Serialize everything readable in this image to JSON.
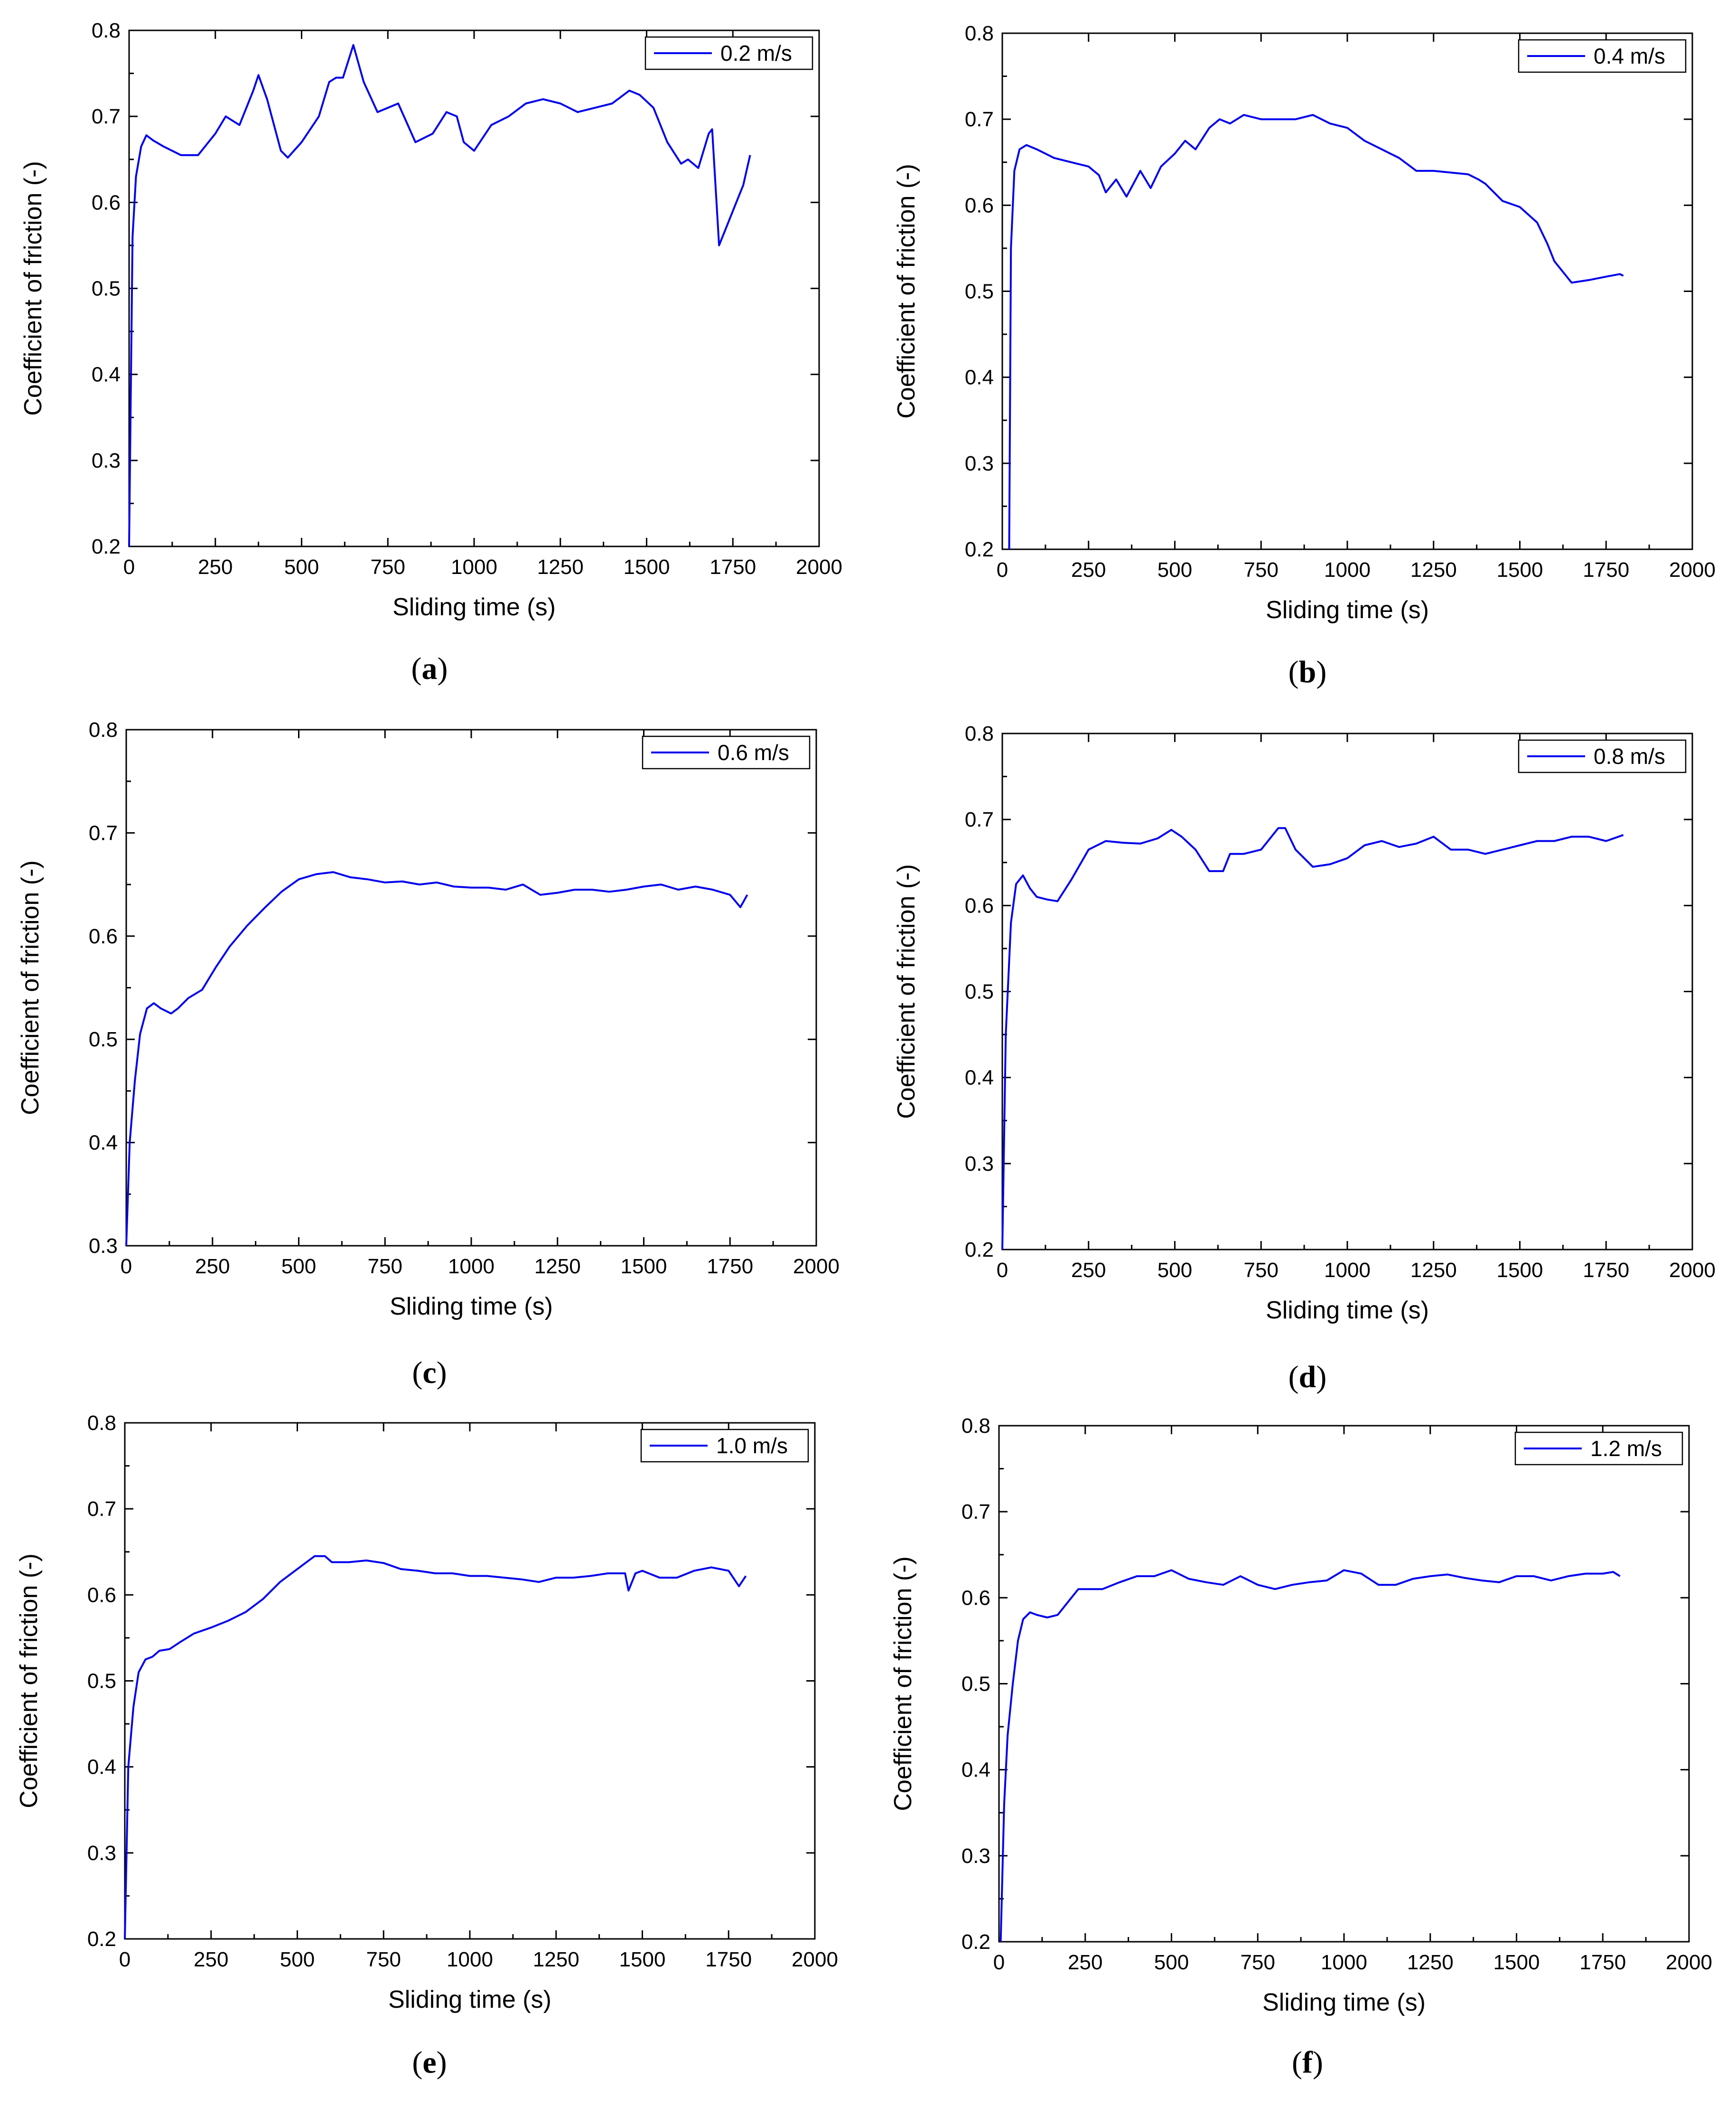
{
  "figure": {
    "series_color": "#0000ee",
    "axis_color": "#000000"
  },
  "chart_data": [
    {
      "id": "a",
      "type": "line",
      "panel_label": "a",
      "legend": "0.2 m/s",
      "xlabel": "Sliding time (s)",
      "ylabel": "Coefficient of friction (-)",
      "xlim": [
        0,
        2000
      ],
      "ylim": [
        0.2,
        0.8
      ],
      "xticks": [
        0,
        250,
        500,
        750,
        1000,
        1250,
        1500,
        1750,
        2000
      ],
      "yticks": [
        0.2,
        0.3,
        0.4,
        0.5,
        0.6,
        0.7,
        0.8
      ],
      "x": [
        0,
        10,
        20,
        35,
        50,
        70,
        100,
        150,
        200,
        250,
        280,
        320,
        360,
        375,
        400,
        440,
        460,
        500,
        550,
        580,
        600,
        620,
        650,
        680,
        720,
        780,
        830,
        880,
        920,
        950,
        970,
        1000,
        1050,
        1100,
        1150,
        1200,
        1250,
        1300,
        1350,
        1400,
        1450,
        1480,
        1520,
        1560,
        1600,
        1620,
        1650,
        1680,
        1690,
        1710,
        1730,
        1760,
        1780,
        1800
      ],
      "y": [
        0.2,
        0.56,
        0.63,
        0.665,
        0.678,
        0.672,
        0.665,
        0.655,
        0.655,
        0.68,
        0.7,
        0.69,
        0.73,
        0.748,
        0.72,
        0.66,
        0.652,
        0.67,
        0.7,
        0.74,
        0.745,
        0.745,
        0.783,
        0.74,
        0.705,
        0.715,
        0.67,
        0.68,
        0.705,
        0.7,
        0.67,
        0.66,
        0.69,
        0.7,
        0.715,
        0.72,
        0.715,
        0.705,
        0.71,
        0.715,
        0.73,
        0.725,
        0.71,
        0.67,
        0.645,
        0.65,
        0.64,
        0.68,
        0.685,
        0.55,
        0.57,
        0.6,
        0.62,
        0.655
      ]
    },
    {
      "id": "b",
      "type": "line",
      "panel_label": "b",
      "legend": "0.4 m/s",
      "xlabel": "Sliding time (s)",
      "ylabel": "Coefficient of friction (-)",
      "xlim": [
        0,
        2000
      ],
      "ylim": [
        0.2,
        0.8
      ],
      "xticks": [
        0,
        250,
        500,
        750,
        1000,
        1250,
        1500,
        1750,
        2000
      ],
      "yticks": [
        0.2,
        0.3,
        0.4,
        0.5,
        0.6,
        0.7,
        0.8
      ],
      "x": [
        20,
        25,
        35,
        50,
        70,
        100,
        150,
        200,
        250,
        280,
        300,
        330,
        360,
        380,
        400,
        430,
        460,
        500,
        530,
        560,
        600,
        630,
        660,
        700,
        750,
        800,
        850,
        900,
        950,
        1000,
        1050,
        1100,
        1150,
        1200,
        1250,
        1300,
        1350,
        1380,
        1400,
        1450,
        1500,
        1550,
        1580,
        1600,
        1630,
        1650,
        1700,
        1750,
        1790,
        1800
      ],
      "y": [
        0.2,
        0.55,
        0.64,
        0.665,
        0.67,
        0.665,
        0.655,
        0.65,
        0.645,
        0.635,
        0.615,
        0.63,
        0.61,
        0.625,
        0.64,
        0.62,
        0.645,
        0.66,
        0.675,
        0.665,
        0.69,
        0.7,
        0.695,
        0.705,
        0.7,
        0.7,
        0.7,
        0.705,
        0.695,
        0.69,
        0.675,
        0.665,
        0.655,
        0.64,
        0.64,
        0.638,
        0.636,
        0.63,
        0.625,
        0.605,
        0.598,
        0.58,
        0.555,
        0.535,
        0.52,
        0.51,
        0.513,
        0.517,
        0.52,
        0.518
      ]
    },
    {
      "id": "c",
      "type": "line",
      "panel_label": "c",
      "legend": "0.6 m/s",
      "xlabel": "Sliding time (s)",
      "ylabel": "Coefficient of friction (-)",
      "xlim": [
        0,
        2000
      ],
      "ylim": [
        0.3,
        0.8
      ],
      "xticks": [
        0,
        250,
        500,
        750,
        1000,
        1250,
        1500,
        1750,
        2000
      ],
      "yticks": [
        0.3,
        0.4,
        0.5,
        0.6,
        0.7,
        0.8
      ],
      "x": [
        0,
        10,
        25,
        40,
        60,
        80,
        100,
        130,
        150,
        180,
        220,
        260,
        300,
        350,
        400,
        450,
        500,
        550,
        600,
        650,
        700,
        750,
        800,
        850,
        900,
        950,
        1000,
        1050,
        1100,
        1150,
        1200,
        1250,
        1300,
        1350,
        1400,
        1450,
        1500,
        1550,
        1600,
        1650,
        1700,
        1750,
        1780,
        1800
      ],
      "y": [
        0.3,
        0.4,
        0.46,
        0.505,
        0.53,
        0.535,
        0.53,
        0.525,
        0.53,
        0.54,
        0.548,
        0.57,
        0.59,
        0.61,
        0.627,
        0.643,
        0.655,
        0.66,
        0.662,
        0.657,
        0.655,
        0.652,
        0.653,
        0.65,
        0.652,
        0.648,
        0.647,
        0.647,
        0.645,
        0.65,
        0.64,
        0.642,
        0.645,
        0.645,
        0.643,
        0.645,
        0.648,
        0.65,
        0.645,
        0.648,
        0.645,
        0.64,
        0.628,
        0.64
      ]
    },
    {
      "id": "d",
      "type": "line",
      "panel_label": "d",
      "legend": "0.8 m/s",
      "xlabel": "Sliding time (s)",
      "ylabel": "Coefficient of friction (-)",
      "xlim": [
        0,
        2000
      ],
      "ylim": [
        0.2,
        0.8
      ],
      "xticks": [
        0,
        250,
        500,
        750,
        1000,
        1250,
        1500,
        1750,
        2000
      ],
      "yticks": [
        0.2,
        0.3,
        0.4,
        0.5,
        0.6,
        0.7,
        0.8
      ],
      "x": [
        0,
        10,
        25,
        40,
        60,
        80,
        100,
        130,
        160,
        200,
        250,
        300,
        350,
        400,
        450,
        490,
        520,
        560,
        600,
        640,
        660,
        700,
        750,
        800,
        820,
        850,
        900,
        950,
        1000,
        1050,
        1100,
        1150,
        1200,
        1250,
        1300,
        1350,
        1400,
        1450,
        1500,
        1550,
        1600,
        1650,
        1700,
        1750,
        1800
      ],
      "y": [
        0.2,
        0.45,
        0.58,
        0.625,
        0.635,
        0.62,
        0.61,
        0.607,
        0.605,
        0.63,
        0.665,
        0.675,
        0.673,
        0.672,
        0.678,
        0.688,
        0.68,
        0.665,
        0.64,
        0.64,
        0.66,
        0.66,
        0.665,
        0.69,
        0.69,
        0.665,
        0.645,
        0.648,
        0.655,
        0.67,
        0.675,
        0.668,
        0.672,
        0.68,
        0.665,
        0.665,
        0.66,
        0.665,
        0.67,
        0.675,
        0.675,
        0.68,
        0.68,
        0.675,
        0.682
      ]
    },
    {
      "id": "e",
      "type": "line",
      "panel_label": "e",
      "legend": "1.0 m/s",
      "xlabel": "Sliding time (s)",
      "ylabel": "Coefficient of friction (-)",
      "xlim": [
        0,
        2000
      ],
      "ylim": [
        0.2,
        0.8
      ],
      "xticks": [
        0,
        250,
        500,
        750,
        1000,
        1250,
        1500,
        1750,
        2000
      ],
      "yticks": [
        0.2,
        0.3,
        0.4,
        0.5,
        0.6,
        0.7,
        0.8
      ],
      "x": [
        0,
        10,
        25,
        40,
        60,
        80,
        100,
        130,
        160,
        200,
        250,
        300,
        350,
        400,
        450,
        500,
        550,
        580,
        600,
        650,
        700,
        750,
        800,
        850,
        900,
        950,
        1000,
        1050,
        1100,
        1150,
        1200,
        1250,
        1300,
        1350,
        1400,
        1450,
        1460,
        1480,
        1500,
        1550,
        1600,
        1650,
        1700,
        1750,
        1780,
        1800
      ],
      "y": [
        0.2,
        0.4,
        0.47,
        0.51,
        0.525,
        0.528,
        0.535,
        0.537,
        0.545,
        0.555,
        0.562,
        0.57,
        0.58,
        0.595,
        0.615,
        0.63,
        0.645,
        0.645,
        0.638,
        0.638,
        0.64,
        0.637,
        0.63,
        0.628,
        0.625,
        0.625,
        0.622,
        0.622,
        0.62,
        0.618,
        0.615,
        0.62,
        0.62,
        0.622,
        0.625,
        0.625,
        0.605,
        0.625,
        0.628,
        0.62,
        0.62,
        0.628,
        0.632,
        0.628,
        0.61,
        0.622
      ]
    },
    {
      "id": "f",
      "type": "line",
      "panel_label": "f",
      "legend": "1.2 m/s",
      "xlabel": "Sliding time (s)",
      "ylabel": "Coefficient of friction (-)",
      "xlim": [
        0,
        2000
      ],
      "ylim": [
        0.2,
        0.8
      ],
      "xticks": [
        0,
        250,
        500,
        750,
        1000,
        1250,
        1500,
        1750,
        2000
      ],
      "yticks": [
        0.2,
        0.3,
        0.4,
        0.5,
        0.6,
        0.7,
        0.8
      ],
      "x": [
        5,
        15,
        25,
        40,
        55,
        70,
        90,
        110,
        140,
        170,
        200,
        230,
        260,
        300,
        350,
        400,
        450,
        500,
        550,
        600,
        650,
        700,
        750,
        800,
        850,
        900,
        950,
        1000,
        1050,
        1100,
        1150,
        1200,
        1250,
        1300,
        1350,
        1400,
        1450,
        1500,
        1550,
        1600,
        1650,
        1700,
        1750,
        1780,
        1800
      ],
      "y": [
        0.2,
        0.36,
        0.44,
        0.5,
        0.55,
        0.575,
        0.583,
        0.58,
        0.577,
        0.58,
        0.595,
        0.61,
        0.61,
        0.61,
        0.618,
        0.625,
        0.625,
        0.632,
        0.622,
        0.618,
        0.615,
        0.625,
        0.615,
        0.61,
        0.615,
        0.618,
        0.62,
        0.632,
        0.628,
        0.615,
        0.615,
        0.622,
        0.625,
        0.627,
        0.623,
        0.62,
        0.618,
        0.625,
        0.625,
        0.62,
        0.625,
        0.628,
        0.628,
        0.63,
        0.625
      ]
    }
  ]
}
